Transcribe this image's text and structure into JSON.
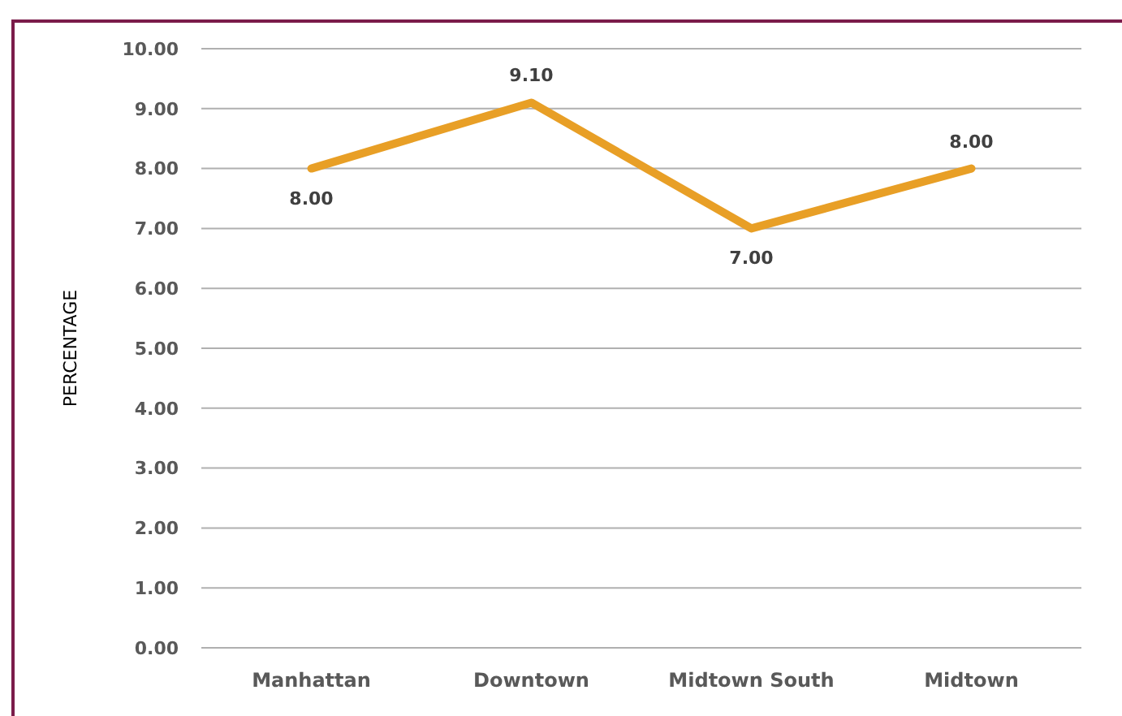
{
  "chart_data": {
    "type": "line",
    "ylabel": "PERCENTAGE",
    "categories": [
      "Manhattan",
      "Downtown",
      "Midtown South",
      "Midtown"
    ],
    "series": [
      {
        "color": "#e89f26",
        "values": [
          8.0,
          9.1,
          7.0,
          8.0
        ],
        "value_labels": [
          "8.00",
          "9.10",
          "7.00",
          "8.00"
        ]
      }
    ],
    "ylim": [
      0,
      10
    ],
    "yticks": [
      {
        "value": 0,
        "label": "0.00"
      },
      {
        "value": 1,
        "label": "1.00"
      },
      {
        "value": 2,
        "label": "2.00"
      },
      {
        "value": 3,
        "label": "3.00"
      },
      {
        "value": 4,
        "label": "4.00"
      },
      {
        "value": 5,
        "label": "5.00"
      },
      {
        "value": 6,
        "label": "6.00"
      },
      {
        "value": 7,
        "label": "7.00"
      },
      {
        "value": 8,
        "label": "8.00"
      },
      {
        "value": 9,
        "label": "9.00"
      },
      {
        "value": 10,
        "label": "10.00"
      }
    ],
    "grid": "y",
    "marker": "none",
    "line_style": "solid"
  }
}
